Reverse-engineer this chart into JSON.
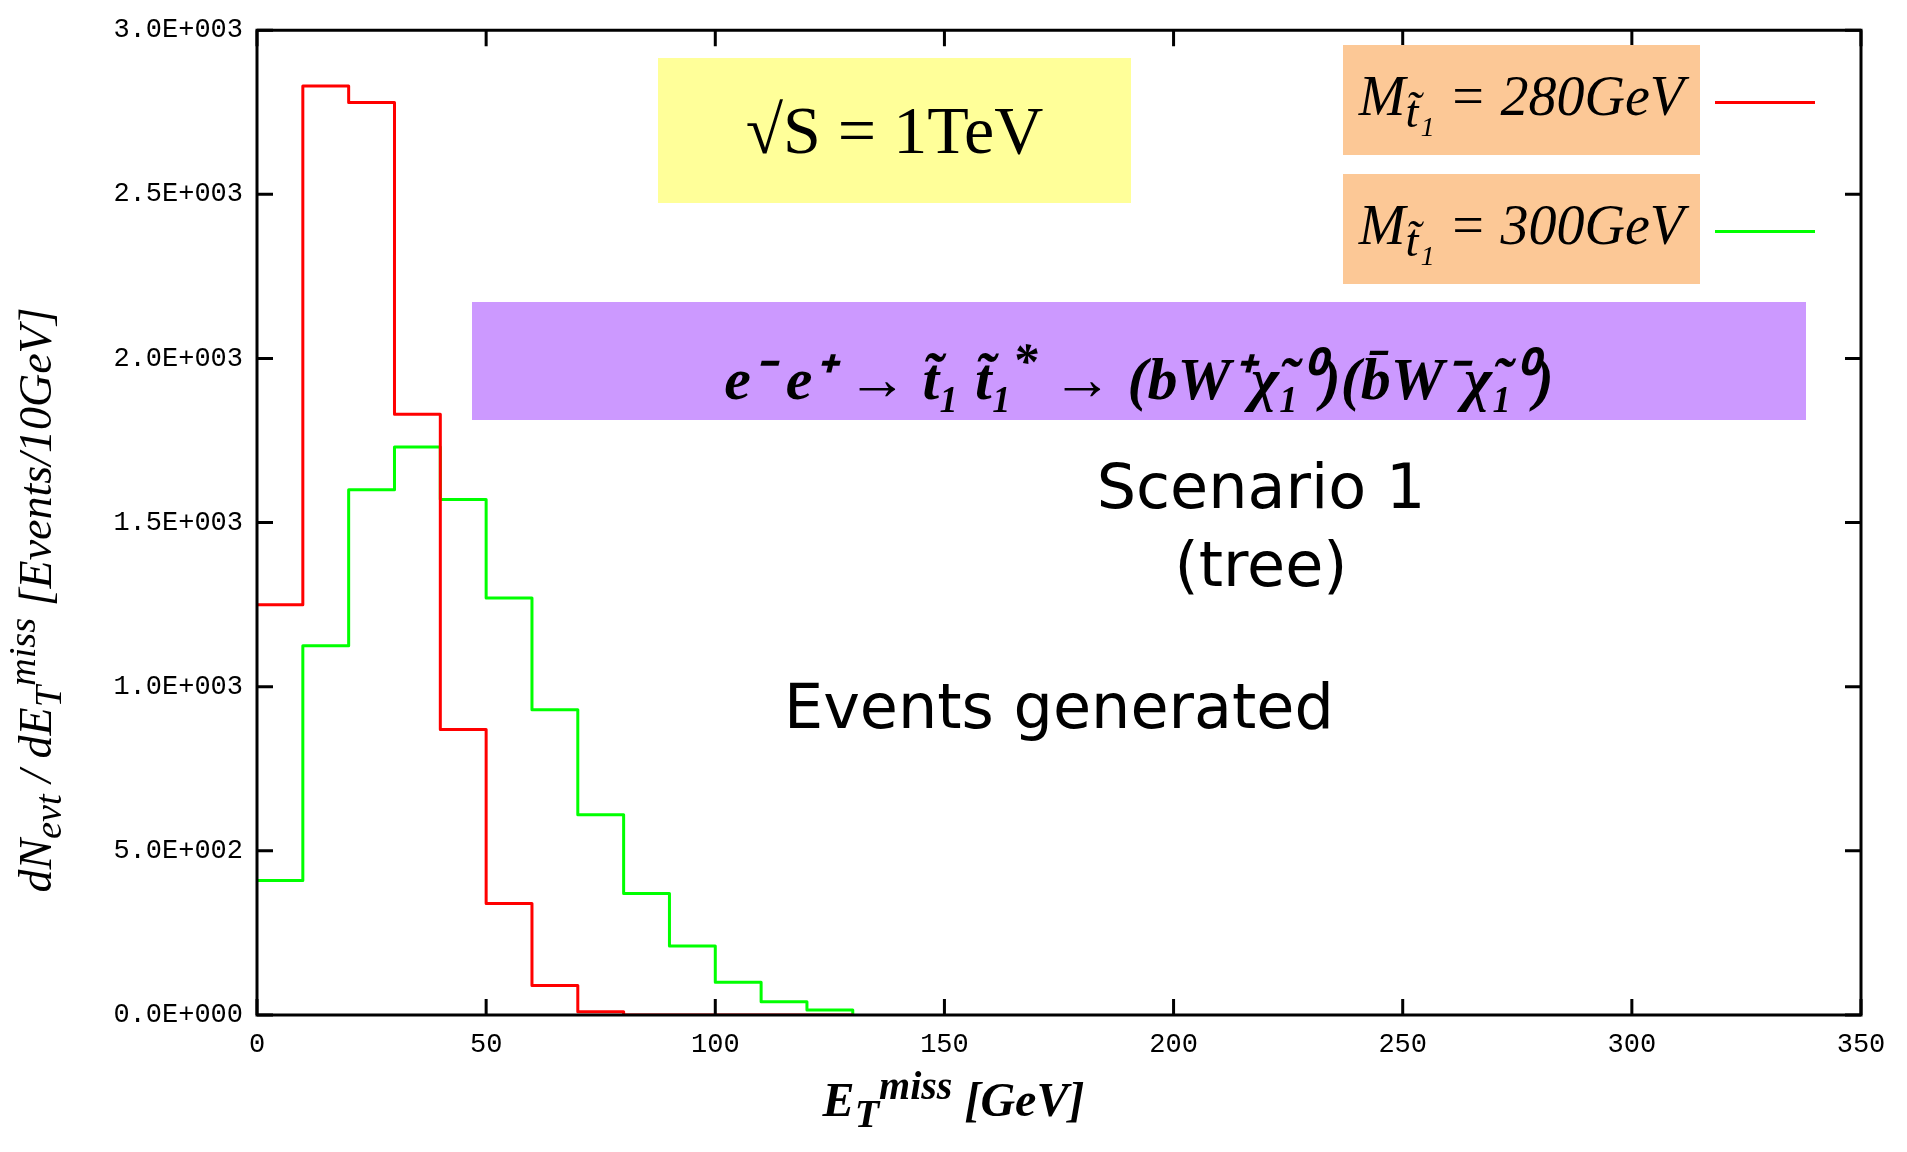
{
  "chart_data": {
    "type": "histogram",
    "xlabel": "E$_{T}$$^{miss}$ [GeV]",
    "ylabel": "dN$_{evt}$ / dE$_{T}$$^{miss}$ [Events/10GeV]",
    "bins": [
      0,
      10,
      20,
      30,
      40,
      50,
      60,
      70,
      80,
      90,
      100,
      110,
      120,
      130
    ],
    "series": [
      {
        "name": "M$_{t̃₁}$ = 280GeV",
        "color": "#ff0000",
        "values": [
          1250,
          2830,
          2780,
          1830,
          870,
          340,
          90,
          10,
          0,
          0,
          0,
          0,
          0
        ]
      },
      {
        "name": "M$_{t̃₁}$ = 300GeV",
        "color": "#00ff00",
        "values": [
          410,
          1125,
          1600,
          1730,
          1570,
          1270,
          930,
          610,
          370,
          210,
          100,
          40,
          15
        ]
      }
    ],
    "xlim": [
      0,
      350
    ],
    "xticks": [
      0,
      50,
      100,
      150,
      200,
      250,
      300,
      350
    ],
    "ylim": [
      0,
      3000
    ],
    "yticks": [
      {
        "value": 0,
        "label": "0.0E+000"
      },
      {
        "value": 500,
        "label": "5.0E+002"
      },
      {
        "value": 1000,
        "label": "1.0E+003"
      },
      {
        "value": 1500,
        "label": "1.5E+003"
      },
      {
        "value": 2000,
        "label": "2.0E+003"
      },
      {
        "value": 2500,
        "label": "2.5E+003"
      },
      {
        "value": 3000,
        "label": "3.0E+003"
      }
    ],
    "legend": "top right",
    "annotations": [
      "√S = 1TeV",
      "e⁻ e⁺ → t̃₁ t̃₁$^{*}$ → (bW⁺χ̃₁⁰)(b̄W⁻χ̃₁⁰)",
      "Scenario 1",
      "(tree)",
      "Events generated"
    ]
  }
}
